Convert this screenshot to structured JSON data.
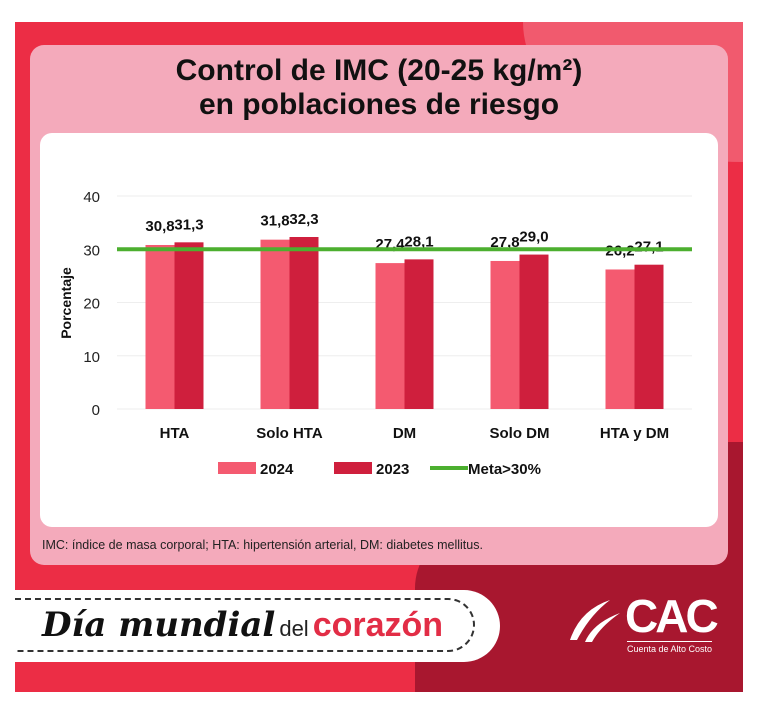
{
  "title_line1": "Control de IMC (20-25 kg/m²)",
  "title_line2": "en poblaciones de riesgo",
  "footnote": "IMC: índice de masa corporal; HTA: hipertensión arterial, DM: diabetes mellitus.",
  "banner": {
    "part1": "Día mundial",
    "part2": "del",
    "part3": "corazón"
  },
  "logo": {
    "name": "CAC",
    "subtitle": "Cuenta de Alto Costo"
  },
  "chart_data": {
    "type": "bar",
    "title": "Control de IMC (20-25 kg/m²) en poblaciones de riesgo",
    "ylabel": "Porcentaje",
    "xlabel": "",
    "ylim": [
      0,
      40
    ],
    "yticks": [
      0,
      10,
      20,
      30,
      40
    ],
    "categories": [
      "HTA",
      "Solo HTA",
      "DM",
      "Solo DM",
      "HTA y DM"
    ],
    "series": [
      {
        "name": "2024",
        "color": "#f45a70",
        "values": [
          30.8,
          31.8,
          27.4,
          27.8,
          26.2
        ],
        "labels": [
          "30,8",
          "31,8",
          "27,4",
          "27,8",
          "26,2"
        ]
      },
      {
        "name": "2023",
        "color": "#cf1f3d",
        "values": [
          31.3,
          32.3,
          28.1,
          29.0,
          27.1
        ],
        "labels": [
          "31,3",
          "32,3",
          "28,1",
          "29,0",
          "27,1"
        ]
      }
    ],
    "reference_line": {
      "name": "Meta>30%",
      "value": 30,
      "color": "#4caf2f"
    },
    "grid": true,
    "legend": "bottom"
  }
}
